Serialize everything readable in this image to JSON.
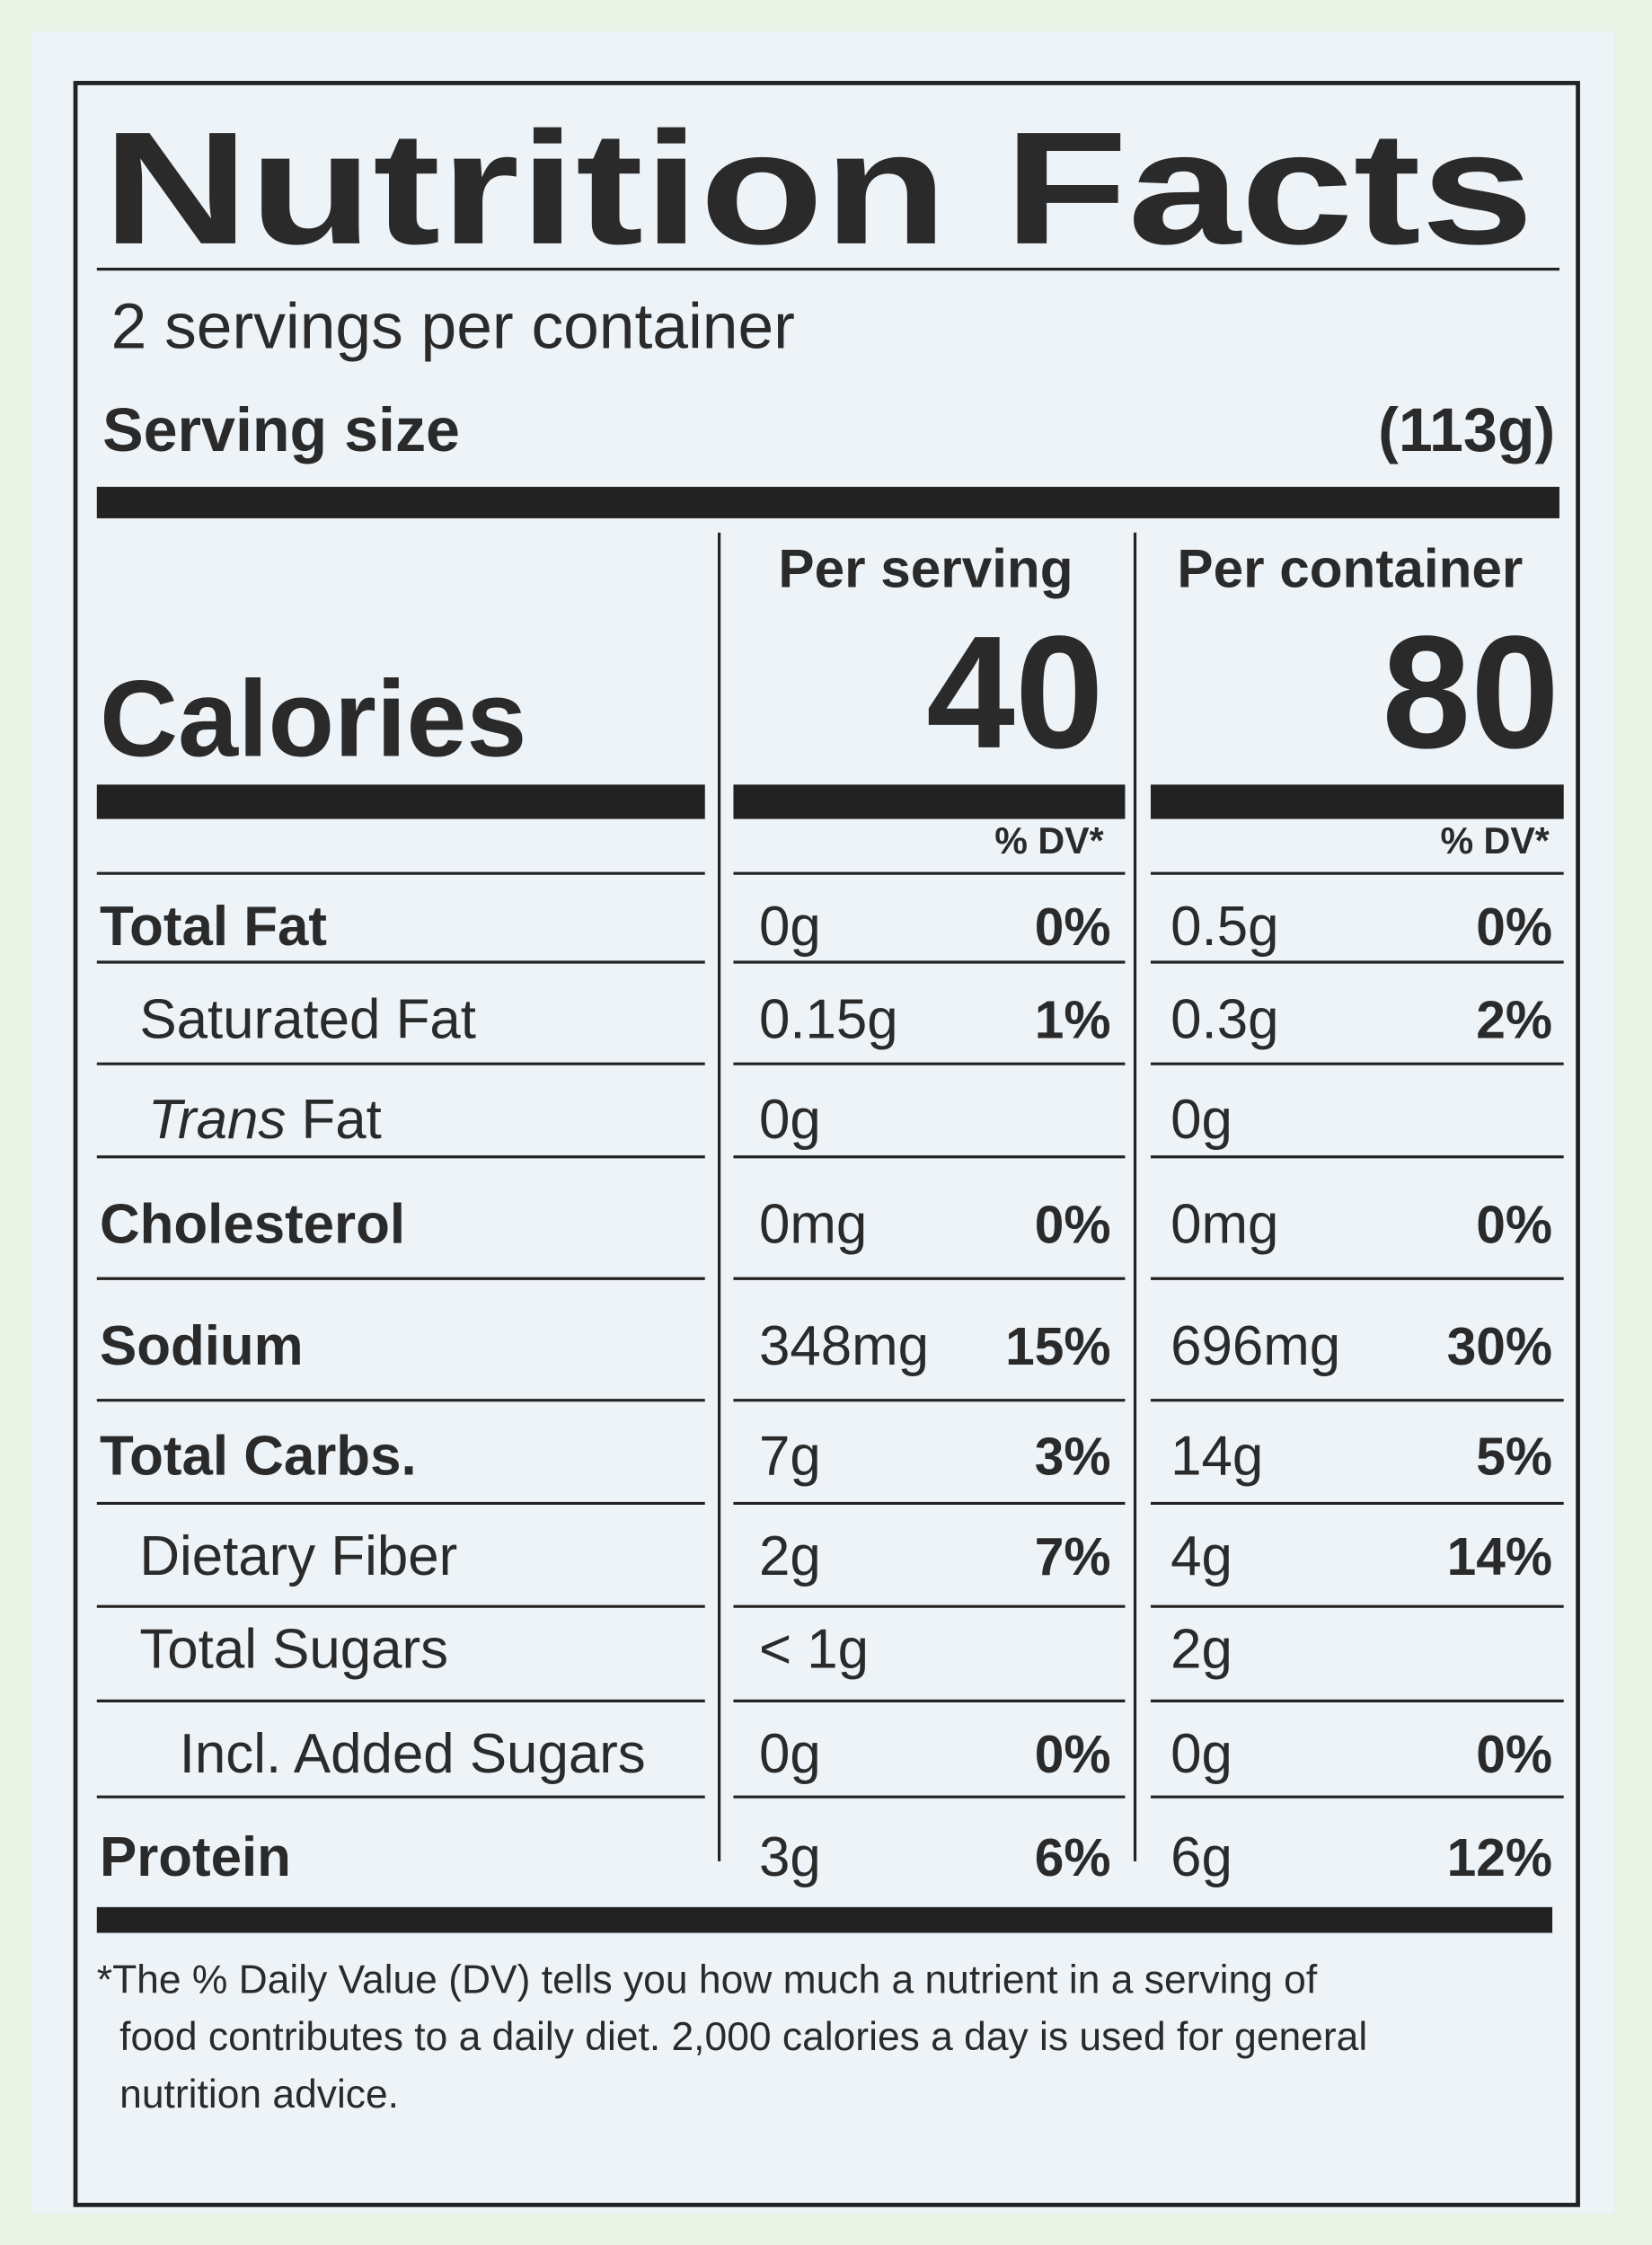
{
  "header": {
    "title": "Nutrition Facts",
    "servings": "2 servings per container",
    "serving_size_label": "Serving size",
    "serving_size_value": "(113g)"
  },
  "calories": {
    "label": "Calories",
    "serving_heading": "Per serving",
    "container_heading": "Per container",
    "serving_value": "40",
    "container_value": "80",
    "serving_dv_heading": "% DV*",
    "container_dv_heading": "% DV*"
  },
  "rows": [
    {
      "label": "Total Fat",
      "serving_amount": "0g",
      "serving_dv": "0%",
      "container_amount": "0.5g",
      "container_dv": "0%"
    },
    {
      "label": "Saturated Fat",
      "serving_amount": "0.15g",
      "serving_dv": "1%",
      "container_amount": "0.3g",
      "container_dv": "2%"
    },
    {
      "label_italic": "Trans",
      "label": "Fat",
      "serving_amount": "0g",
      "container_amount": "0g"
    },
    {
      "label": "Cholesterol",
      "serving_amount": "0mg",
      "serving_dv": "0%",
      "container_amount": "0mg",
      "container_dv": "0%"
    },
    {
      "label": "Sodium",
      "serving_amount": "348mg",
      "serving_dv": "15%",
      "container_amount": "696mg",
      "container_dv": "30%"
    },
    {
      "label": "Total Carbs.",
      "serving_amount": "7g",
      "serving_dv": "3%",
      "container_amount": "14g",
      "container_dv": "5%"
    },
    {
      "label": "Dietary Fiber",
      "serving_amount": "2g",
      "serving_dv": "7%",
      "container_amount": "4g",
      "container_dv": "14%"
    },
    {
      "label": "Total Sugars",
      "serving_amount": "< 1g",
      "container_amount": "2g"
    },
    {
      "label": "Incl. Added Sugars",
      "serving_amount": "0g",
      "serving_dv": "0%",
      "container_amount": "0g",
      "container_dv": "0%"
    },
    {
      "label": "Protein",
      "serving_amount": "3g",
      "serving_dv": "6%",
      "container_amount": "6g",
      "container_dv": "12%"
    }
  ],
  "footnote": [
    "*The % Daily Value (DV) tells you how much a nutrient in a serving of",
    "food contributes to a daily diet. 2,000 calories a day is used for general",
    "nutrition advice."
  ]
}
